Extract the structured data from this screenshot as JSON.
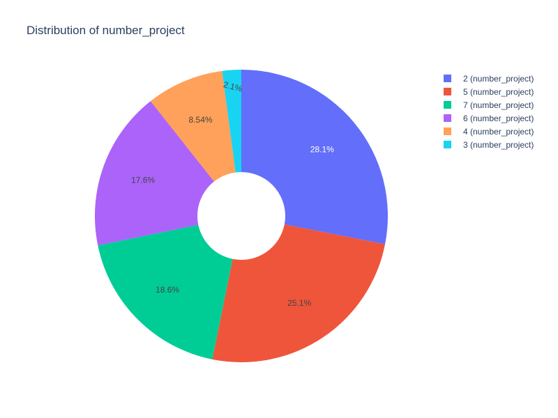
{
  "chart_data": {
    "type": "pie",
    "title": "Distribution of number_project",
    "hole": true,
    "legend_position": "top-right",
    "slices": [
      {
        "label": "2 (number_project)",
        "value": 28.1,
        "text": "28.1%",
        "color": "#636efa",
        "text_color": "#ffffff"
      },
      {
        "label": "5 (number_project)",
        "value": 25.1,
        "text": "25.1%",
        "color": "#ef553b",
        "text_color": "#444444"
      },
      {
        "label": "7 (number_project)",
        "value": 18.6,
        "text": "18.6%",
        "color": "#00cc96",
        "text_color": "#444444"
      },
      {
        "label": "6 (number_project)",
        "value": 17.6,
        "text": "17.6%",
        "color": "#ab63fa",
        "text_color": "#444444"
      },
      {
        "label": "4 (number_project)",
        "value": 8.54,
        "text": "8.54%",
        "color": "#ffa15a",
        "text_color": "#444444"
      },
      {
        "label": "3 (number_project)",
        "value": 2.1,
        "text": "2.1%",
        "color": "#19d3f3",
        "text_color": "#444444"
      }
    ]
  }
}
